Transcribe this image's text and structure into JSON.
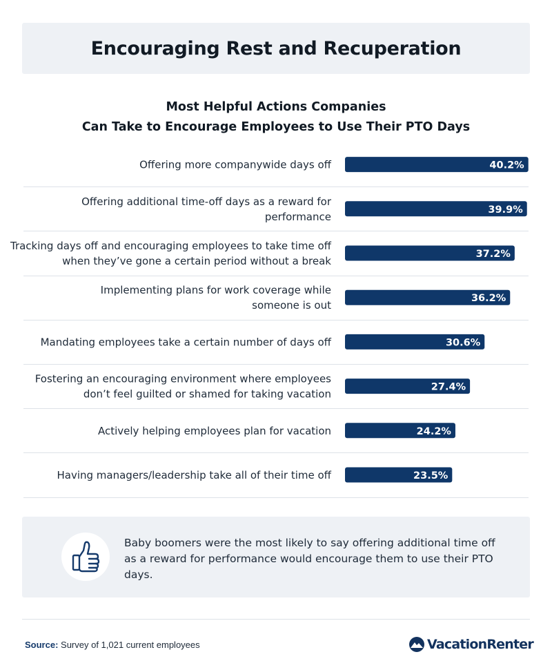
{
  "header": {
    "title": "Encouraging Rest and Recuperation"
  },
  "chart_data": {
    "type": "bar",
    "orientation": "horizontal",
    "title_lines": [
      "Most Helpful Actions Companies",
      "Can Take to Encourage Employees to Use Their PTO Days"
    ],
    "unit": "%",
    "value_labels": "inside bar end",
    "bar_color": "#0f3769",
    "categories": [
      [
        "Offering more companywide days off"
      ],
      [
        "Offering additional time-off days as a reward for",
        "performance"
      ],
      [
        "Tracking days off and encouraging employees to take time off",
        "when they’ve gone a certain period without a break"
      ],
      [
        "Implementing plans for work coverage while",
        "someone is out"
      ],
      [
        "Mandating employees take a certain number of days off"
      ],
      [
        "Fostering an encouraging environment where employees",
        "don’t feel guilted or shamed for taking vacation"
      ],
      [
        "Actively helping employees plan for vacation"
      ],
      [
        "Having managers/leadership take all of their time off"
      ]
    ],
    "values": [
      40.2,
      39.9,
      37.2,
      36.2,
      30.6,
      27.4,
      24.2,
      23.5
    ],
    "value_text": [
      "40.2%",
      "39.9%",
      "37.2%",
      "36.2%",
      "30.6%",
      "27.4%",
      "24.2%",
      "23.5%"
    ]
  },
  "callout": {
    "icon": "thumbs-up-icon",
    "text": "Baby boomers were the most likely to say offering additional time off as a reward for performance would encourage them to use their PTO days."
  },
  "footer": {
    "source_label": "Source:",
    "source_text": "Survey of 1,021 current employees",
    "brand": "VacationRenter",
    "brand_icon": "mountain-logo-icon"
  },
  "colors": {
    "bar": "#0f3769",
    "header_bg": "#eef1f5",
    "divider": "#dde2e8"
  }
}
